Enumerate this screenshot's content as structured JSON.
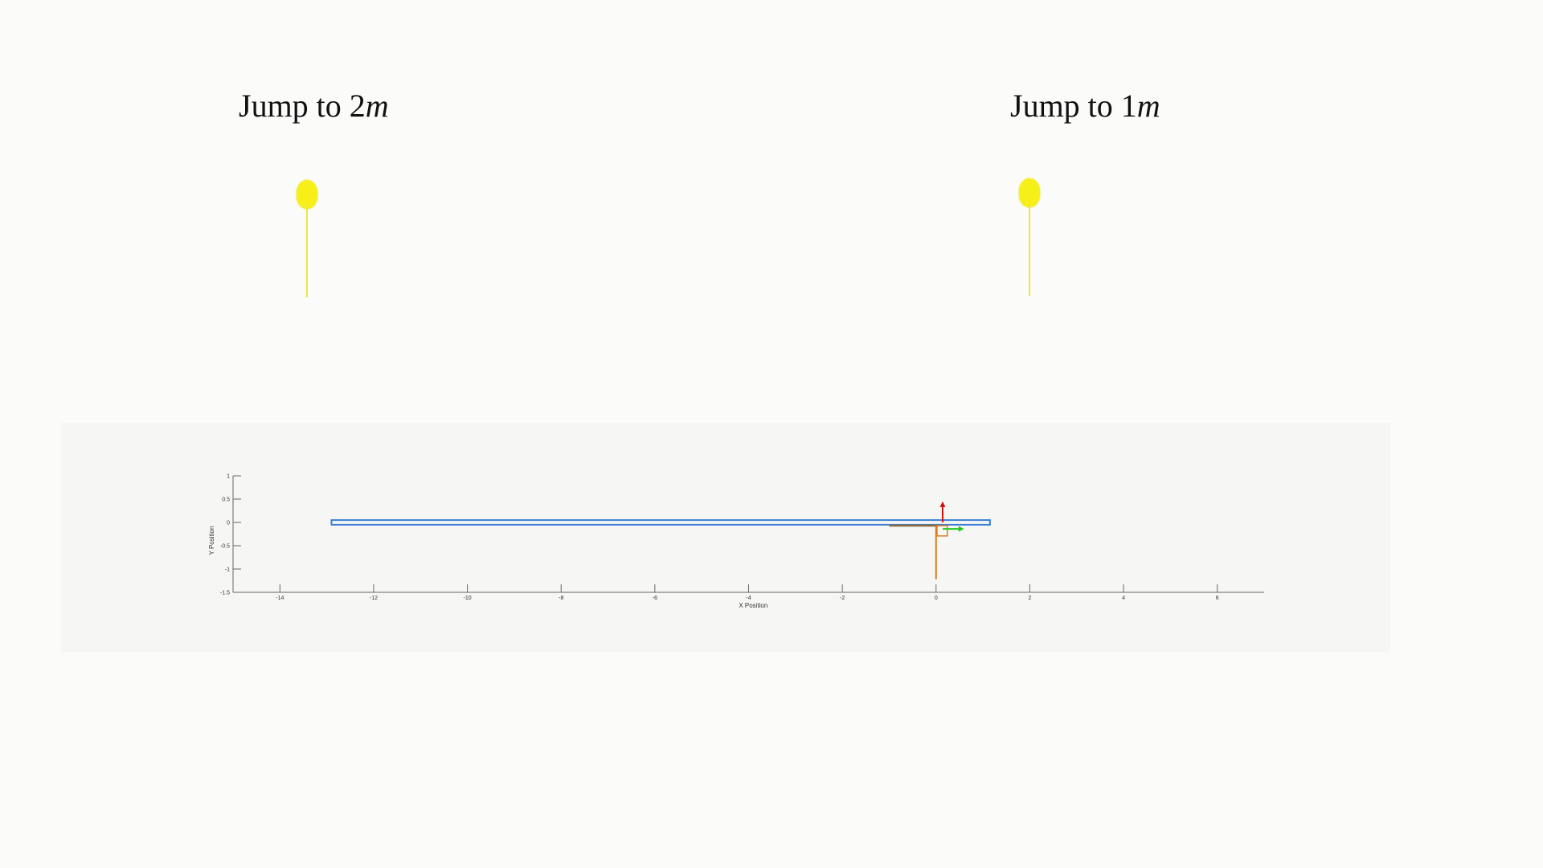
{
  "labels": {
    "left": {
      "text": "Jump to ",
      "value": "2",
      "unit": "m"
    },
    "right": {
      "text": "Jump to ",
      "value": "1",
      "unit": "m"
    }
  },
  "colors": {
    "marker": "#f6ef18",
    "platform": "#3a7fd6",
    "leg": "#e07b1f",
    "upper_leg": "#8c6a3c",
    "arrow_y": "#d01010",
    "arrow_x": "#22c922",
    "axis": "#666666"
  },
  "plot": {
    "xlabel": "X Position",
    "ylabel": "Y Position",
    "xlim": [
      -15,
      7
    ],
    "ylim": [
      -1.5,
      1
    ],
    "x_ticks": [
      {
        "value": -14,
        "label": "-14"
      },
      {
        "value": -12,
        "label": "-12"
      },
      {
        "value": -10,
        "label": "-10"
      },
      {
        "value": -8,
        "label": "-8"
      },
      {
        "value": -6,
        "label": "-6"
      },
      {
        "value": -4,
        "label": "-4"
      },
      {
        "value": -2,
        "label": "-2"
      },
      {
        "value": 0,
        "label": "0"
      },
      {
        "value": 2,
        "label": "2"
      },
      {
        "value": 4,
        "label": "4"
      },
      {
        "value": 6,
        "label": "6"
      }
    ],
    "y_ticks": [
      {
        "value": 1,
        "label": "1"
      },
      {
        "value": 0.5,
        "label": "0.5"
      },
      {
        "value": 0,
        "label": "0"
      },
      {
        "value": -0.5,
        "label": "-0.5"
      },
      {
        "value": -1,
        "label": "-1"
      },
      {
        "value": -1.5,
        "label": "-1.5"
      }
    ],
    "platform": {
      "x0": -12.9,
      "x1": 1.15,
      "y0": -0.05,
      "y1": 0.05
    },
    "upper_leg": {
      "x0": -1.0,
      "x1": 0.05,
      "y": -0.07
    },
    "leg": {
      "x": 0.0,
      "y0": -0.07,
      "y1": -1.22
    },
    "foot_box": {
      "x0": 0.02,
      "x1": 0.24,
      "y0": -0.07,
      "y1": -0.29
    },
    "arrow_y": {
      "x": 0.14,
      "y0": 0.0,
      "y1": 0.45
    },
    "arrow_x": {
      "y": -0.14,
      "x0": 0.14,
      "x1": 0.6
    }
  }
}
